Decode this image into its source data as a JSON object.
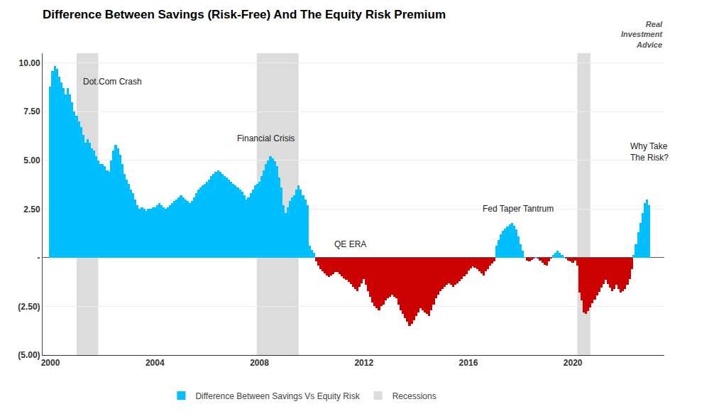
{
  "chart_data": {
    "type": "bar",
    "title": "Difference Between Savings (Risk-Free) And The Equity Risk Premium",
    "x": [
      2000.0,
      2000.083,
      2000.167,
      2000.25,
      2000.333,
      2000.417,
      2000.5,
      2000.583,
      2000.667,
      2000.75,
      2000.833,
      2000.917,
      2001.0,
      2001.083,
      2001.167,
      2001.25,
      2001.333,
      2001.417,
      2001.5,
      2001.583,
      2001.667,
      2001.75,
      2001.833,
      2001.917,
      2002.0,
      2002.083,
      2002.167,
      2002.25,
      2002.333,
      2002.417,
      2002.5,
      2002.583,
      2002.667,
      2002.75,
      2002.833,
      2002.917,
      2003.0,
      2003.083,
      2003.167,
      2003.25,
      2003.333,
      2003.417,
      2003.5,
      2003.583,
      2003.667,
      2003.75,
      2003.833,
      2003.917,
      2004.0,
      2004.083,
      2004.167,
      2004.25,
      2004.333,
      2004.417,
      2004.5,
      2004.583,
      2004.667,
      2004.75,
      2004.833,
      2004.917,
      2005.0,
      2005.083,
      2005.167,
      2005.25,
      2005.333,
      2005.417,
      2005.5,
      2005.583,
      2005.667,
      2005.75,
      2005.833,
      2005.917,
      2006.0,
      2006.083,
      2006.167,
      2006.25,
      2006.333,
      2006.417,
      2006.5,
      2006.583,
      2006.667,
      2006.75,
      2006.833,
      2006.917,
      2007.0,
      2007.083,
      2007.167,
      2007.25,
      2007.333,
      2007.417,
      2007.5,
      2007.583,
      2007.667,
      2007.75,
      2007.833,
      2007.917,
      2008.0,
      2008.083,
      2008.167,
      2008.25,
      2008.333,
      2008.417,
      2008.5,
      2008.583,
      2008.667,
      2008.75,
      2008.833,
      2008.917,
      2009.0,
      2009.083,
      2009.167,
      2009.25,
      2009.333,
      2009.417,
      2009.5,
      2009.583,
      2009.667,
      2009.75,
      2009.833,
      2009.917,
      2010.0,
      2010.083,
      2010.167,
      2010.25,
      2010.333,
      2010.417,
      2010.5,
      2010.583,
      2010.667,
      2010.75,
      2010.833,
      2010.917,
      2011.0,
      2011.083,
      2011.167,
      2011.25,
      2011.333,
      2011.417,
      2011.5,
      2011.583,
      2011.667,
      2011.75,
      2011.833,
      2011.917,
      2012.0,
      2012.083,
      2012.167,
      2012.25,
      2012.333,
      2012.417,
      2012.5,
      2012.583,
      2012.667,
      2012.75,
      2012.833,
      2012.917,
      2013.0,
      2013.083,
      2013.167,
      2013.25,
      2013.333,
      2013.417,
      2013.5,
      2013.583,
      2013.667,
      2013.75,
      2013.833,
      2013.917,
      2014.0,
      2014.083,
      2014.167,
      2014.25,
      2014.333,
      2014.417,
      2014.5,
      2014.583,
      2014.667,
      2014.75,
      2014.833,
      2014.917,
      2015.0,
      2015.083,
      2015.167,
      2015.25,
      2015.333,
      2015.417,
      2015.5,
      2015.583,
      2015.667,
      2015.75,
      2015.833,
      2015.917,
      2016.0,
      2016.083,
      2016.167,
      2016.25,
      2016.333,
      2016.417,
      2016.5,
      2016.583,
      2016.667,
      2016.75,
      2016.833,
      2016.917,
      2017.0,
      2017.083,
      2017.167,
      2017.25,
      2017.333,
      2017.417,
      2017.5,
      2017.583,
      2017.667,
      2017.75,
      2017.833,
      2017.917,
      2018.0,
      2018.083,
      2018.167,
      2018.25,
      2018.333,
      2018.417,
      2018.5,
      2018.583,
      2018.667,
      2018.75,
      2018.833,
      2018.917,
      2019.0,
      2019.083,
      2019.167,
      2019.25,
      2019.333,
      2019.417,
      2019.5,
      2019.583,
      2019.667,
      2019.75,
      2019.833,
      2019.917,
      2020.0,
      2020.083,
      2020.167,
      2020.25,
      2020.333,
      2020.417,
      2020.5,
      2020.583,
      2020.667,
      2020.75,
      2020.833,
      2020.917,
      2021.0,
      2021.083,
      2021.167,
      2021.25,
      2021.333,
      2021.417,
      2021.5,
      2021.583,
      2021.667,
      2021.75,
      2021.833,
      2021.917,
      2022.0,
      2022.083,
      2022.167,
      2022.25,
      2022.333,
      2022.417,
      2022.5,
      2022.583,
      2022.667,
      2022.75,
      2022.833,
      2022.917
    ],
    "series": [
      {
        "name": "Difference Between Savings Vs Equity Risk",
        "type": "bar",
        "color": "#00BFFF",
        "values": [
          8.8,
          9.6,
          9.85,
          9.7,
          9.3,
          9.0,
          8.7,
          8.4,
          8.7,
          8.4,
          8.0,
          7.5,
          7.3,
          7.0,
          6.7,
          6.3,
          5.9,
          6.1,
          5.9,
          5.6,
          5.5,
          5.2,
          5.0,
          4.8,
          4.8,
          4.7,
          4.5,
          4.4,
          5.0,
          5.5,
          5.8,
          5.6,
          5.3,
          4.8,
          4.3,
          4.0,
          3.8,
          3.5,
          3.3,
          3.0,
          2.7,
          2.5,
          2.6,
          2.5,
          2.4,
          2.5,
          2.5,
          2.6,
          2.6,
          2.7,
          2.8,
          2.7,
          2.6,
          2.5,
          2.6,
          2.7,
          2.8,
          2.9,
          3.0,
          3.1,
          3.2,
          3.1,
          3.0,
          2.9,
          2.8,
          2.9,
          3.1,
          3.3,
          3.5,
          3.6,
          3.7,
          3.8,
          3.9,
          4.0,
          4.2,
          4.3,
          4.4,
          4.5,
          4.4,
          4.3,
          4.2,
          4.1,
          4.0,
          3.9,
          3.8,
          3.7,
          3.6,
          3.5,
          3.4,
          3.2,
          3.0,
          3.1,
          3.3,
          3.5,
          3.7,
          3.8,
          3.9,
          4.2,
          4.5,
          4.8,
          5.0,
          5.2,
          5.1,
          4.95,
          4.7,
          4.1,
          3.6,
          2.7,
          2.3,
          2.6,
          2.9,
          3.1,
          3.2,
          3.5,
          3.7,
          3.5,
          3.2,
          3.0,
          2.7,
          0.6,
          0.4,
          0.25,
          -0.2,
          -0.4,
          -0.6,
          -0.7,
          -0.8,
          -0.9,
          -1.0,
          -0.9,
          -0.85,
          -0.75,
          -0.75,
          -0.85,
          -0.95,
          -1.05,
          -1.15,
          -1.25,
          -1.35,
          -1.5,
          -1.6,
          -1.7,
          -1.5,
          -1.3,
          -1.1,
          -1.4,
          -1.7,
          -2.0,
          -2.3,
          -2.5,
          -2.6,
          -2.7,
          -2.5,
          -2.4,
          -2.2,
          -2.1,
          -2.0,
          -1.9,
          -2.0,
          -2.1,
          -2.4,
          -2.7,
          -2.9,
          -3.1,
          -3.3,
          -3.5,
          -3.4,
          -3.2,
          -3.0,
          -2.8,
          -2.6,
          -2.7,
          -2.8,
          -2.9,
          -3.0,
          -2.7,
          -2.4,
          -2.1,
          -1.9,
          -1.7,
          -1.6,
          -1.5,
          -1.4,
          -1.3,
          -1.4,
          -1.5,
          -1.4,
          -1.3,
          -1.2,
          -1.1,
          -0.95,
          -0.85,
          -0.65,
          -0.55,
          -0.45,
          -0.5,
          -0.6,
          -0.7,
          -0.8,
          -0.9,
          -0.7,
          -0.6,
          -0.4,
          -0.3,
          -0.2,
          0.6,
          0.9,
          1.2,
          1.4,
          1.5,
          1.6,
          1.7,
          1.8,
          1.65,
          1.45,
          1.1,
          0.7,
          0.35,
          0.05,
          -0.15,
          -0.2,
          -0.1,
          -0.05,
          0.05,
          -0.05,
          -0.15,
          -0.25,
          -0.35,
          -0.4,
          -0.2,
          -0.05,
          0.15,
          0.25,
          0.35,
          0.25,
          0.15,
          0.05,
          -0.05,
          -0.15,
          -0.2,
          -0.25,
          -0.15,
          -0.4,
          -1.8,
          -2.2,
          -2.8,
          -2.9,
          -2.75,
          -2.55,
          -2.35,
          -2.15,
          -1.95,
          -1.75,
          -1.55,
          -1.35,
          -1.15,
          -1.35,
          -1.55,
          -1.7,
          -1.6,
          -1.4,
          -1.6,
          -1.8,
          -1.7,
          -1.6,
          -1.4,
          -1.1,
          -0.6,
          0.15,
          0.7,
          1.3,
          1.8,
          2.3,
          2.8,
          3.0,
          2.7
        ],
        "colors": [
          "#00BFFF",
          "#00BFFF",
          "#00BFFF",
          "#00BFFF",
          "#00BFFF",
          "#00BFFF",
          "#00BFFF",
          "#00BFFF",
          "#00BFFF",
          "#00BFFF",
          "#00BFFF",
          "#00BFFF",
          "#00BFFF",
          "#00BFFF",
          "#00BFFF",
          "#00BFFF",
          "#00BFFF",
          "#00BFFF",
          "#00BFFF",
          "#00BFFF",
          "#00BFFF",
          "#00BFFF",
          "#00BFFF",
          "#00BFFF",
          "#00BFFF",
          "#00BFFF",
          "#00BFFF",
          "#00BFFF",
          "#00BFFF",
          "#00BFFF",
          "#00BFFF",
          "#00BFFF",
          "#00BFFF",
          "#00BFFF",
          "#00BFFF",
          "#00BFFF",
          "#00BFFF",
          "#00BFFF",
          "#00BFFF",
          "#00BFFF",
          "#00BFFF",
          "#00BFFF",
          "#00BFFF",
          "#00BFFF",
          "#00BFFF",
          "#00BFFF",
          "#00BFFF",
          "#00BFFF",
          "#00BFFF",
          "#00BFFF",
          "#00BFFF",
          "#00BFFF",
          "#00BFFF",
          "#00BFFF",
          "#00BFFF",
          "#00BFFF",
          "#00BFFF",
          "#00BFFF",
          "#00BFFF",
          "#00BFFF",
          "#00BFFF",
          "#00BFFF",
          "#00BFFF",
          "#00BFFF",
          "#00BFFF",
          "#00BFFF",
          "#00BFFF",
          "#00BFFF",
          "#00BFFF",
          "#00BFFF",
          "#00BFFF",
          "#00BFFF",
          "#00BFFF",
          "#00BFFF",
          "#00BFFF",
          "#00BFFF",
          "#00BFFF",
          "#00BFFF",
          "#00BFFF",
          "#00BFFF",
          "#00BFFF",
          "#00BFFF",
          "#00BFFF",
          "#00BFFF",
          "#00BFFF",
          "#00BFFF",
          "#00BFFF",
          "#00BFFF",
          "#00BFFF",
          "#00BFFF",
          "#00BFFF",
          "#00BFFF",
          "#00BFFF",
          "#00BFFF",
          "#00BFFF",
          "#00BFFF",
          "#00BFFF",
          "#00BFFF",
          "#00BFFF",
          "#00BFFF",
          "#00BFFF",
          "#00BFFF",
          "#00BFFF",
          "#00BFFF",
          "#00BFFF",
          "#00BFFF",
          "#00BFFF",
          "#00BFFF",
          "#00BFFF",
          "#00BFFF",
          "#00BFFF",
          "#00BFFF",
          "#00BFFF",
          "#00BFFF",
          "#00BFFF",
          "#00BFFF",
          "#00BFFF",
          "#00BFFF",
          "#00BFFF",
          "#00BFFF",
          "#00BFFF",
          "#00BFFF",
          "#CC0000",
          "#CC0000",
          "#CC0000",
          "#CC0000",
          "#CC0000",
          "#CC0000",
          "#CC0000",
          "#CC0000",
          "#CC0000",
          "#CC0000",
          "#CC0000",
          "#CC0000",
          "#CC0000",
          "#CC0000",
          "#CC0000",
          "#CC0000",
          "#CC0000",
          "#CC0000",
          "#CC0000",
          "#CC0000",
          "#CC0000",
          "#CC0000",
          "#CC0000",
          "#CC0000",
          "#CC0000",
          "#CC0000",
          "#CC0000",
          "#CC0000",
          "#CC0000",
          "#CC0000",
          "#CC0000",
          "#CC0000",
          "#CC0000",
          "#CC0000",
          "#CC0000",
          "#CC0000",
          "#CC0000",
          "#CC0000",
          "#CC0000",
          "#CC0000",
          "#CC0000",
          "#CC0000",
          "#CC0000",
          "#CC0000",
          "#CC0000",
          "#CC0000",
          "#CC0000",
          "#CC0000",
          "#CC0000",
          "#CC0000",
          "#CC0000",
          "#CC0000",
          "#CC0000",
          "#CC0000",
          "#CC0000",
          "#CC0000",
          "#CC0000",
          "#CC0000",
          "#CC0000",
          "#CC0000",
          "#CC0000",
          "#CC0000",
          "#CC0000",
          "#CC0000",
          "#CC0000",
          "#CC0000",
          "#CC0000",
          "#CC0000",
          "#CC0000",
          "#CC0000",
          "#CC0000",
          "#CC0000",
          "#CC0000",
          "#CC0000",
          "#CC0000",
          "#CC0000",
          "#CC0000",
          "#CC0000",
          "#CC0000",
          "#CC0000",
          "#CC0000",
          "#CC0000",
          "#CC0000",
          "#00BFFF",
          "#00BFFF",
          "#00BFFF",
          "#00BFFF",
          "#00BFFF",
          "#00BFFF",
          "#00BFFF",
          "#00BFFF",
          "#00BFFF",
          "#00BFFF",
          "#00BFFF",
          "#00BFFF",
          "#00BFFF",
          "#00BFFF",
          "#CC0000",
          "#CC0000",
          "#CC0000",
          "#CC0000",
          "#00BFFF",
          "#CC0000",
          "#CC0000",
          "#CC0000",
          "#CC0000",
          "#CC0000",
          "#CC0000",
          "#CC0000",
          "#00BFFF",
          "#00BFFF",
          "#00BFFF",
          "#00BFFF",
          "#00BFFF",
          "#00BFFF",
          "#CC0000",
          "#CC0000",
          "#CC0000",
          "#CC0000",
          "#CC0000",
          "#CC0000",
          "#CC0000",
          "#CC0000",
          "#CC0000",
          "#CC0000",
          "#CC0000",
          "#CC0000",
          "#CC0000",
          "#CC0000",
          "#CC0000",
          "#CC0000",
          "#CC0000",
          "#CC0000",
          "#CC0000",
          "#CC0000",
          "#CC0000",
          "#CC0000",
          "#CC0000",
          "#CC0000",
          "#CC0000",
          "#CC0000",
          "#CC0000",
          "#CC0000",
          "#CC0000",
          "#CC0000",
          "#CC0000",
          "#00BFFF",
          "#00BFFF",
          "#00BFFF",
          "#00BFFF",
          "#00BFFF",
          "#00BFFF",
          "#00BFFF",
          "#00BFFF"
        ]
      },
      {
        "name": "Recessions",
        "type": "span",
        "color": "#DCDCDC",
        "periods": [
          [
            2001.0,
            2001.83
          ],
          [
            2007.9,
            2009.5
          ],
          [
            2020.17,
            2020.67
          ]
        ]
      }
    ],
    "xlim": [
      1999.7,
      2023.5
    ],
    "xticks": [
      2000,
      2004,
      2008,
      2012,
      2016,
      2020
    ],
    "ylim": [
      -5.0,
      10.5
    ],
    "yticks": [
      {
        "value": -5.0,
        "label": "(5.00)"
      },
      {
        "value": -2.5,
        "label": "(2.50)"
      },
      {
        "value": 0.0,
        "label": "-"
      },
      {
        "value": 2.5,
        "label": "2.50"
      },
      {
        "value": 5.0,
        "label": "5.00"
      },
      {
        "value": 7.5,
        "label": "7.50"
      },
      {
        "value": 10.0,
        "label": "10.00"
      }
    ],
    "grid": true,
    "legend": "bottom",
    "annotations": [
      {
        "text": "Dot.Com Crash",
        "x": 2001.2,
        "y": 8.7
      },
      {
        "text": "Financial Crisis",
        "x": 2007.1,
        "y": 5.8
      },
      {
        "text": "QE ERA",
        "x": 2010.8,
        "y": 0.35
      },
      {
        "text": "Fed Taper Tantrum",
        "x": 2016.5,
        "y": 2.2
      },
      {
        "text": "Why Take\nThe Risk?",
        "x": 2022.15,
        "y": 4.8
      },
      {
        "text": "Real\nInvestment\nAdvice"
      }
    ]
  }
}
